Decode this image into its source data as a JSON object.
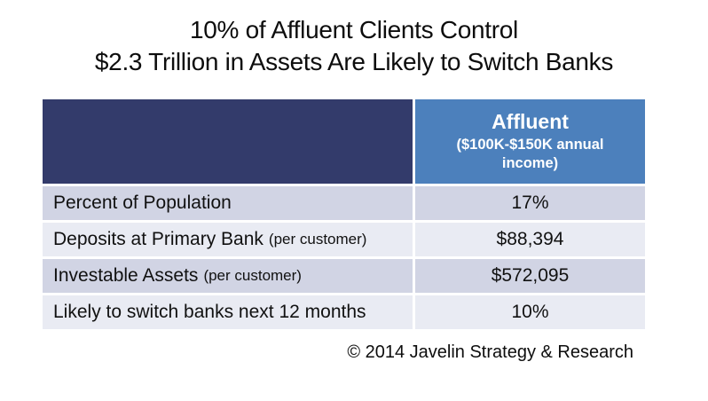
{
  "title": {
    "line1": "10% of Affluent Clients Control",
    "line2": "$2.3 Trillion in Assets Are Likely to Switch Banks"
  },
  "table": {
    "header": {
      "left_label": "",
      "segment_title": "Affluent",
      "segment_subtitle": "($100K-$150K annual income)"
    },
    "rows": [
      {
        "label": "Percent of Population",
        "label_note": "",
        "value": "17%"
      },
      {
        "label": "Deposits at Primary Bank",
        "label_note": "(per customer)",
        "value": "$88,394"
      },
      {
        "label": "Investable Assets",
        "label_note": "(per customer)",
        "value": "$572,095"
      },
      {
        "label": "Likely to switch banks next 12 months",
        "label_note": "",
        "value": "10%"
      }
    ]
  },
  "footer": {
    "copyright": "© 2014 Javelin Strategy & Research"
  },
  "colors": {
    "header_left_bg": "#333B6B",
    "header_right_bg": "#4C80BC",
    "row_shade_dark": "#D1D4E4",
    "row_shade_light": "#E9EBF3",
    "text": "#0d0d0d",
    "header_text": "#ffffff"
  },
  "chart_data": {
    "type": "table",
    "title": "10% of Affluent Clients Control $2.3 Trillion in Assets Are Likely to Switch Banks",
    "columns": [
      "",
      "Affluent ($100K-$150K annual income)"
    ],
    "rows": [
      [
        "Percent of Population",
        "17%"
      ],
      [
        "Deposits at Primary Bank (per customer)",
        "$88,394"
      ],
      [
        "Investable Assets (per customer)",
        "$572,095"
      ],
      [
        "Likely to switch banks next 12 months",
        "10%"
      ]
    ],
    "source": "© 2014 Javelin Strategy & Research"
  }
}
